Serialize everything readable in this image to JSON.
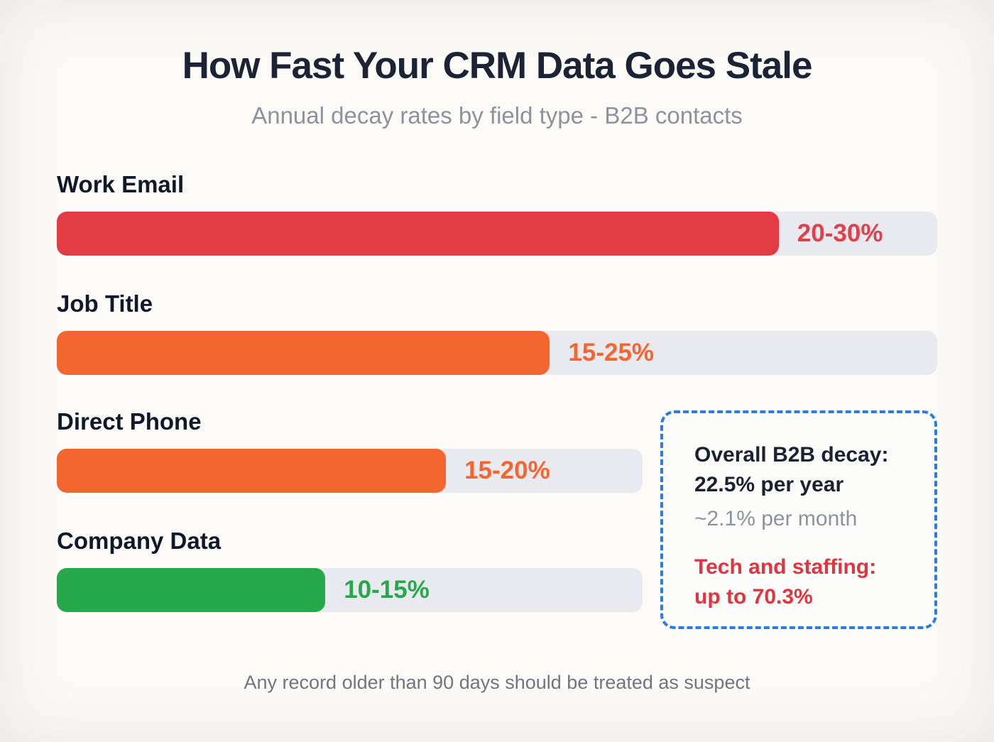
{
  "page": {
    "title": "How Fast Your CRM Data Goes Stale",
    "subtitle": "Annual decay rates by field type - B2B contacts",
    "footnote": "Any record older than 90 days should be treated as suspect"
  },
  "chart_data": {
    "type": "bar",
    "orientation": "horizontal",
    "title": "How Fast Your CRM Data Goes Stale",
    "subtitle": "Annual decay rates by field type - B2B contacts",
    "unit": "percent annual decay",
    "categories": [
      "Work Email",
      "Job Title",
      "Direct Phone",
      "Company Data"
    ],
    "rows": [
      {
        "label": "Work Email",
        "value_label": "20-30%",
        "value_min": 20,
        "value_max": 30,
        "fill_pct": 82,
        "track_pct": 100,
        "color": "#e23b43",
        "value_color": "#e0404a"
      },
      {
        "label": "Job Title",
        "value_label": "15-25%",
        "value_min": 15,
        "value_max": 25,
        "fill_pct": 56,
        "track_pct": 100,
        "color": "#f4662f",
        "value_color": "#f4662f"
      },
      {
        "label": "Direct Phone",
        "value_label": "15-20%",
        "value_min": 15,
        "value_max": 20,
        "fill_pct": 44.2,
        "track_pct": 66.5,
        "color": "#f4662f",
        "value_color": "#f4662f"
      },
      {
        "label": "Company Data",
        "value_label": "10-15%",
        "value_min": 10,
        "value_max": 15,
        "fill_pct": 30.5,
        "track_pct": 66.5,
        "color": "#27a84c",
        "value_color": "#27a84c"
      }
    ],
    "callout": {
      "line1": "Overall B2B decay:",
      "line2": "22.5% per year",
      "line3": "~2.1% per month",
      "line4": "Tech and staffing:",
      "line5": "up to 70.3%",
      "border_color": "#2b7ce0",
      "highlight_color": "#e0353f"
    },
    "colors": {
      "track": "#e9e9f0",
      "red": "#e23b43",
      "orange": "#f4662f",
      "green": "#27a84c",
      "title_text": "#1b2334",
      "muted_text": "#8d929c"
    },
    "legend": null,
    "grid": false
  }
}
